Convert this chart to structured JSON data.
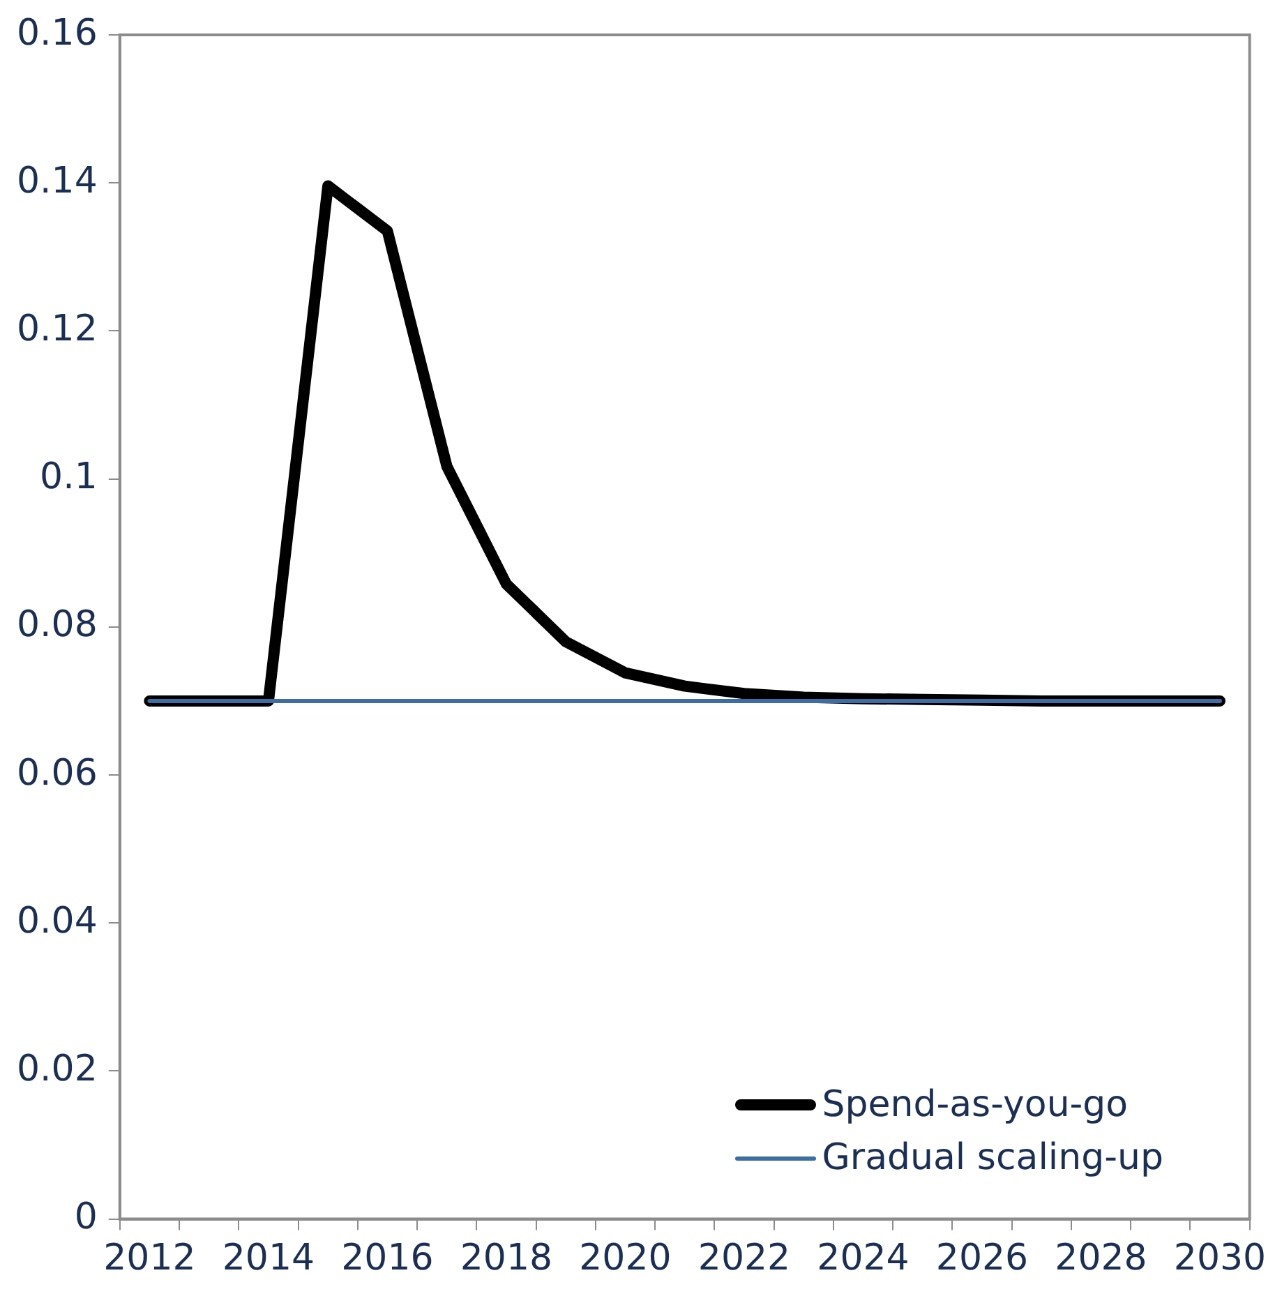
{
  "chart_data": {
    "type": "line",
    "categories": [
      "2012",
      null,
      "2014",
      null,
      "2016",
      null,
      "2018",
      null,
      "2020",
      null,
      "2022",
      null,
      "2024",
      null,
      "2026",
      null,
      "2028",
      null,
      "2030"
    ],
    "series": [
      {
        "name": "Spend-as-you-go",
        "color": "#000000",
        "values": [
          0.07,
          0.07,
          0.07,
          0.1396,
          0.1335,
          0.1017,
          0.0858,
          0.078,
          0.0738,
          0.072,
          0.071,
          0.0705,
          0.0703,
          0.0702,
          0.0701,
          0.07,
          0.07,
          0.07,
          0.07
        ]
      },
      {
        "name": "Gradual scaling-up",
        "color": "#3c6ea5",
        "values": [
          0.07,
          0.07,
          0.07,
          0.07,
          0.07,
          0.07,
          0.07,
          0.07,
          0.07,
          0.07,
          0.07,
          0.07,
          0.07,
          0.07,
          0.07,
          0.07,
          0.07,
          0.07,
          0.07
        ]
      }
    ],
    "ylim": [
      0,
      0.16
    ],
    "yticks": [
      0,
      0.02,
      0.04,
      0.06,
      0.08,
      0.1,
      0.12,
      0.14,
      0.16
    ],
    "grid": false,
    "legend": "bottom right",
    "marker": "none",
    "line_style": "solid"
  }
}
